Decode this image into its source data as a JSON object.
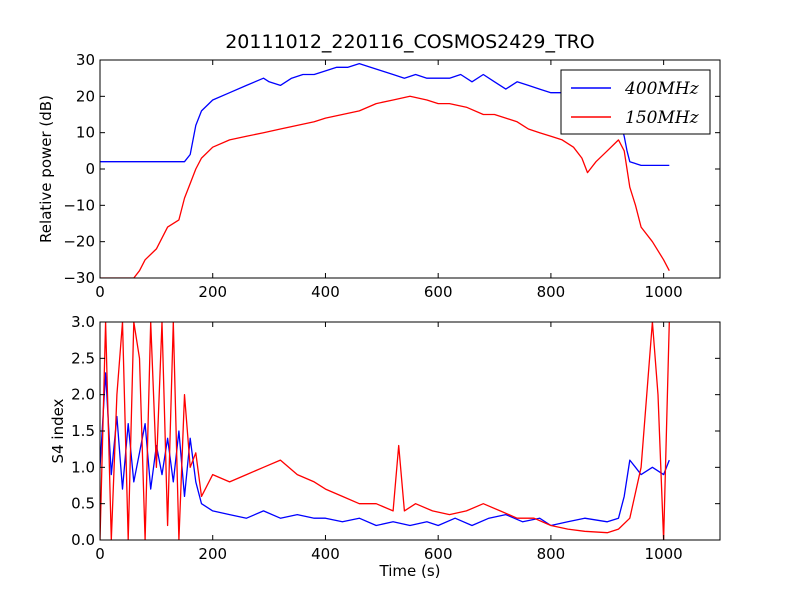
{
  "figure": {
    "title": "20111012_220116_COSMOS2429_TRO"
  },
  "chart_data": [
    {
      "type": "line",
      "panel": "top",
      "title": "20111012_220116_COSMOS2429_TRO",
      "xlabel": "",
      "ylabel": "Relative power (dB)",
      "xlim": [
        0,
        1100
      ],
      "ylim": [
        -30,
        30
      ],
      "x_ticks": [
        "0",
        "200",
        "400",
        "600",
        "800",
        "1000"
      ],
      "y_ticks": [
        "−30",
        "−20",
        "−10",
        "0",
        "10",
        "20",
        "30"
      ],
      "legend": {
        "placement": "top-right",
        "entries": [
          "400MHz",
          "150MHz"
        ]
      },
      "series": [
        {
          "name": "400MHz",
          "color": "#0000ff",
          "x": [
            0,
            40,
            80,
            120,
            150,
            160,
            170,
            180,
            200,
            230,
            260,
            290,
            300,
            320,
            340,
            360,
            380,
            400,
            420,
            440,
            460,
            480,
            500,
            520,
            540,
            560,
            580,
            600,
            620,
            640,
            660,
            680,
            700,
            720,
            740,
            760,
            780,
            800,
            820,
            840,
            860,
            880,
            900,
            920,
            930,
            935,
            940,
            960,
            990,
            1010
          ],
          "y": [
            2,
            2,
            2,
            2,
            2,
            4,
            12,
            16,
            19,
            21,
            23,
            25,
            24,
            23,
            25,
            26,
            26,
            27,
            28,
            28,
            29,
            28,
            27,
            26,
            25,
            26,
            25,
            25,
            25,
            26,
            24,
            26,
            24,
            22,
            24,
            23,
            22,
            21,
            21,
            21,
            18,
            18,
            17,
            15,
            9,
            5,
            2,
            1,
            1,
            1
          ]
        },
        {
          "name": "150MHz",
          "color": "#ff0000",
          "x": [
            0,
            40,
            60,
            70,
            80,
            100,
            120,
            140,
            150,
            160,
            170,
            180,
            200,
            230,
            260,
            290,
            320,
            350,
            380,
            400,
            430,
            460,
            490,
            520,
            550,
            580,
            600,
            620,
            650,
            680,
            700,
            720,
            740,
            760,
            780,
            800,
            820,
            840,
            855,
            865,
            880,
            900,
            920,
            930,
            935,
            940,
            950,
            960,
            980,
            1000,
            1010
          ],
          "y": [
            -30,
            -30,
            -30,
            -28,
            -25,
            -22,
            -16,
            -14,
            -8,
            -4,
            0,
            3,
            6,
            8,
            9,
            10,
            11,
            12,
            13,
            14,
            15,
            16,
            18,
            19,
            20,
            19,
            18,
            18,
            17,
            15,
            15,
            14,
            13,
            11,
            10,
            9,
            8,
            6,
            3,
            -1,
            2,
            5,
            8,
            5,
            0,
            -5,
            -10,
            -16,
            -20,
            -25,
            -28
          ]
        }
      ]
    },
    {
      "type": "line",
      "panel": "bottom",
      "title": "",
      "xlabel": "Time (s)",
      "ylabel": "S4 index",
      "xlim": [
        0,
        1100
      ],
      "ylim": [
        0,
        3
      ],
      "x_ticks": [
        "0",
        "200",
        "400",
        "600",
        "800",
        "1000"
      ],
      "y_ticks": [
        "0.0",
        "0.5",
        "1.0",
        "1.5",
        "2.0",
        "2.5",
        "3.0"
      ],
      "series": [
        {
          "name": "400MHz",
          "color": "#0000ff",
          "x": [
            0,
            10,
            20,
            30,
            40,
            50,
            60,
            70,
            80,
            90,
            100,
            110,
            120,
            130,
            140,
            150,
            160,
            170,
            180,
            200,
            230,
            260,
            290,
            320,
            350,
            380,
            400,
            430,
            460,
            490,
            520,
            550,
            580,
            600,
            630,
            660,
            690,
            720,
            750,
            780,
            800,
            830,
            860,
            900,
            920,
            930,
            940,
            950,
            960,
            980,
            1000,
            1010
          ],
          "y": [
            1.0,
            2.3,
            0.9,
            1.7,
            0.7,
            1.6,
            0.8,
            1.2,
            1.6,
            0.7,
            1.3,
            0.9,
            1.4,
            0.8,
            1.5,
            0.6,
            1.4,
            0.8,
            0.5,
            0.4,
            0.35,
            0.3,
            0.4,
            0.3,
            0.35,
            0.3,
            0.3,
            0.25,
            0.3,
            0.2,
            0.25,
            0.2,
            0.25,
            0.2,
            0.3,
            0.2,
            0.3,
            0.35,
            0.25,
            0.3,
            0.2,
            0.25,
            0.3,
            0.25,
            0.3,
            0.6,
            1.1,
            1.0,
            0.9,
            1.0,
            0.9,
            1.1
          ]
        },
        {
          "name": "150MHz",
          "color": "#ff0000",
          "x": [
            0,
            10,
            20,
            30,
            40,
            50,
            60,
            70,
            80,
            90,
            100,
            110,
            120,
            130,
            140,
            150,
            160,
            170,
            180,
            200,
            230,
            260,
            290,
            320,
            350,
            380,
            400,
            430,
            460,
            490,
            520,
            530,
            540,
            560,
            590,
            620,
            650,
            680,
            710,
            740,
            770,
            800,
            830,
            860,
            900,
            920,
            940,
            960,
            980,
            990,
            1000,
            1010
          ],
          "y": [
            0.0,
            3.0,
            0.0,
            2.0,
            3.0,
            0.0,
            3.0,
            2.5,
            0.0,
            3.0,
            1.0,
            3.0,
            0.2,
            3.0,
            0.0,
            2.0,
            1.0,
            1.2,
            0.6,
            0.9,
            0.8,
            0.9,
            1.0,
            1.1,
            0.9,
            0.8,
            0.7,
            0.6,
            0.5,
            0.5,
            0.4,
            1.3,
            0.4,
            0.5,
            0.4,
            0.35,
            0.4,
            0.5,
            0.4,
            0.3,
            0.3,
            0.2,
            0.15,
            0.12,
            0.1,
            0.15,
            0.3,
            1.0,
            3.0,
            2.0,
            0.0,
            3.0
          ]
        }
      ]
    }
  ]
}
